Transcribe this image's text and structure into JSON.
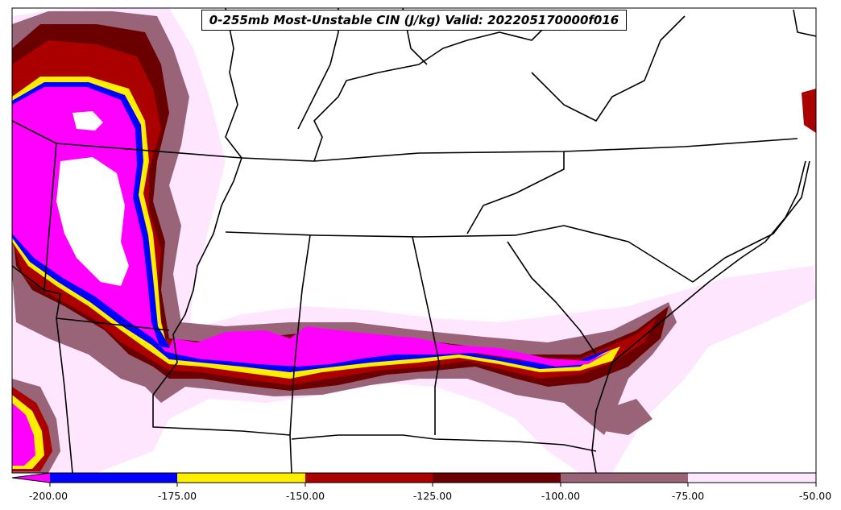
{
  "title": "0-255mb Most-Unstable CIN (J/kg) Valid: 202205170000f016",
  "colorbar": {
    "ticks": [
      "-200.00",
      "-175.00",
      "-150.00",
      "-125.00",
      "-100.00",
      "-75.00",
      "-50.00"
    ],
    "colors": {
      "lt_-200": "#ff00ff",
      "-200_-175": "#0000ff",
      "-175_-150": "#ffee00",
      "-150_-125": "#aa0000",
      "-125_-100": "#6a0000",
      "-100_-75": "#9a6478",
      "-75_-50": "#ffe6ff"
    }
  }
}
